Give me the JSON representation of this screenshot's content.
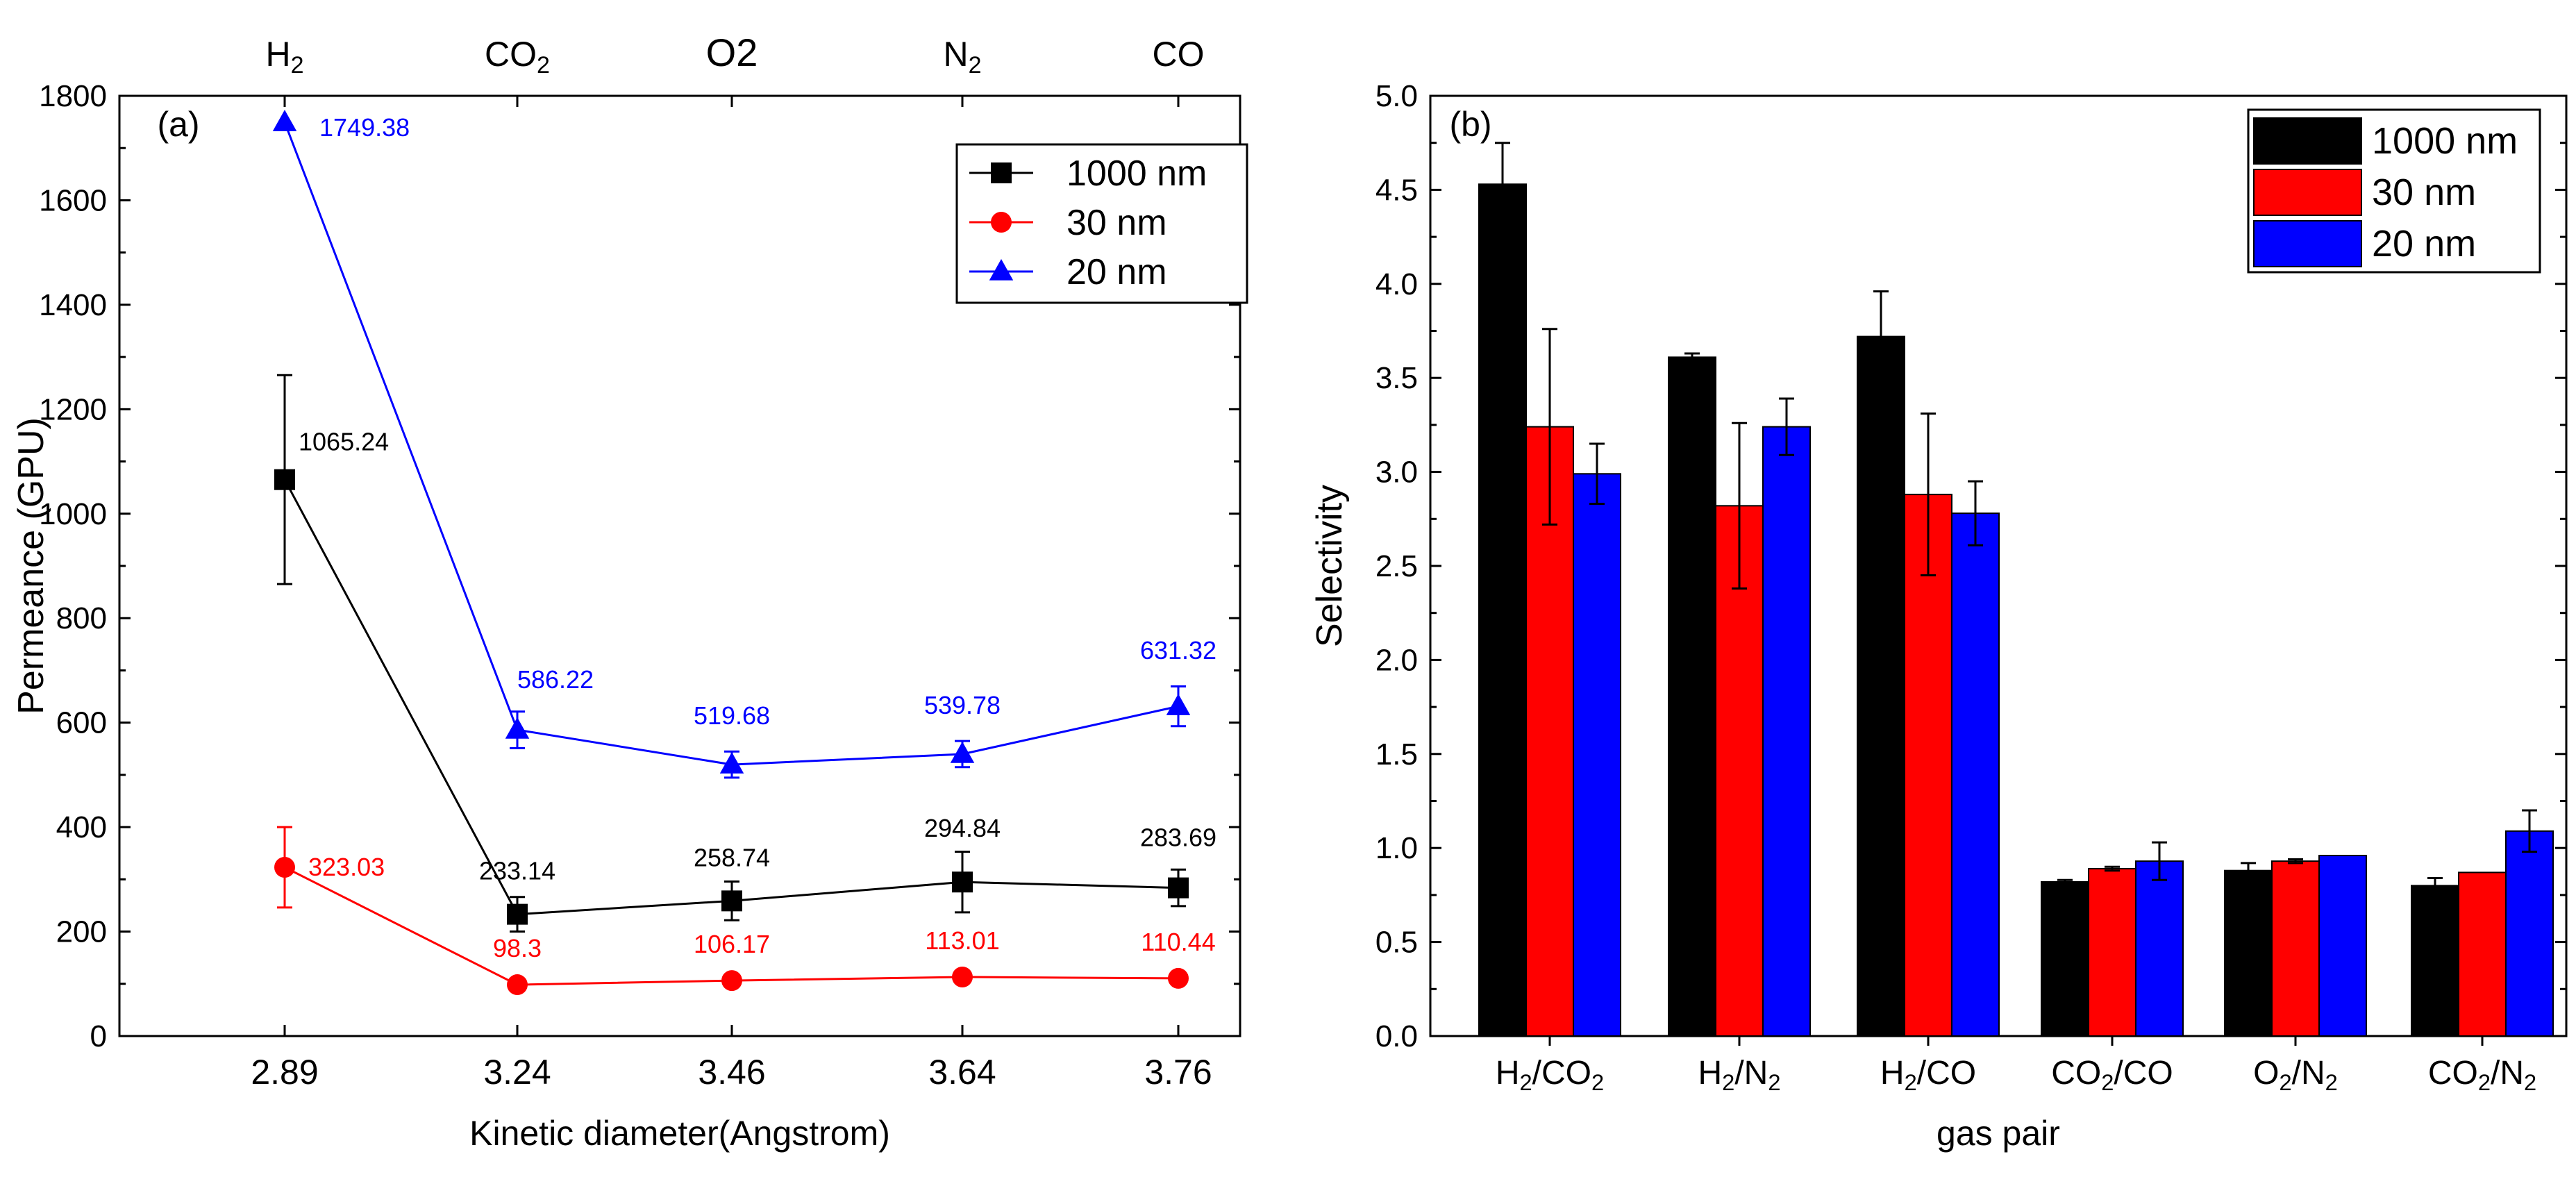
{
  "chart_data": [
    {
      "type": "line",
      "panel_label": "(a)",
      "xlabel": "Kinetic diameter(Angstrom)",
      "ylabel": "Permeance (GPU)",
      "ylim": [
        0,
        1800
      ],
      "yticks": [
        0,
        200,
        400,
        600,
        800,
        1000,
        1200,
        1400,
        1600,
        1800
      ],
      "categories": [
        "2.89",
        "3.24",
        "3.46",
        "3.64",
        "3.76"
      ],
      "top_labels": [
        {
          "base": "H",
          "sub": "2"
        },
        {
          "base": "CO",
          "sub": "2"
        },
        {
          "base": "O2",
          "sub": ""
        },
        {
          "base": "N",
          "sub": "2"
        },
        {
          "base": "CO",
          "sub": ""
        }
      ],
      "legend_position": "top-right",
      "series": [
        {
          "name": "1000 nm",
          "marker": "square",
          "color": "#000000",
          "values": [
            1065.24,
            233.14,
            258.74,
            294.84,
            283.69
          ],
          "errors": [
            200,
            33,
            37,
            58,
            35
          ],
          "labels": [
            "1065.24",
            "233.14",
            "258.74",
            "294.84",
            "283.69"
          ]
        },
        {
          "name": "30 nm",
          "marker": "circle",
          "color": "#ff0000",
          "values": [
            323.03,
            98.3,
            106.17,
            113.01,
            110.44
          ],
          "errors": [
            77,
            5,
            5,
            5,
            5
          ],
          "labels": [
            "323.03",
            "98.3",
            "106.17",
            "113.01",
            "110.44"
          ]
        },
        {
          "name": "20 nm",
          "marker": "triangle",
          "color": "#0000ff",
          "values": [
            1749.38,
            586.22,
            519.68,
            539.78,
            631.32
          ],
          "errors": [
            0,
            35,
            25,
            25,
            38
          ],
          "labels": [
            "1749.38",
            "586.22",
            "519.68",
            "539.78",
            "631.32"
          ]
        }
      ]
    },
    {
      "type": "bar",
      "panel_label": "(b)",
      "xlabel": "gas pair",
      "ylabel": "Selectivity",
      "ylim": [
        0,
        5.0
      ],
      "yticks": [
        "0.0",
        "0.5",
        "1.0",
        "1.5",
        "2.0",
        "2.5",
        "3.0",
        "3.5",
        "4.0",
        "4.5",
        "5.0"
      ],
      "categories": [
        {
          "a": "H",
          "as": "2",
          "b": "CO",
          "bs": "2"
        },
        {
          "a": "H",
          "as": "2",
          "b": "N",
          "bs": "2"
        },
        {
          "a": "H",
          "as": "2",
          "b": "CO",
          "bs": ""
        },
        {
          "a": "CO",
          "as": "2",
          "b": "CO",
          "bs": ""
        },
        {
          "a": "O",
          "as": "2",
          "b": "N",
          "bs": "2"
        },
        {
          "a": "CO",
          "as": "2",
          "b": "N",
          "bs": "2"
        }
      ],
      "legend_position": "top-right",
      "series": [
        {
          "name": "1000 nm",
          "color": "#000000",
          "values": [
            4.53,
            3.61,
            3.72,
            0.82,
            0.88,
            0.8
          ],
          "errors": [
            0.22,
            0.02,
            0.24,
            0.01,
            0.04,
            0.04
          ]
        },
        {
          "name": "30 nm",
          "color": "#ff0000",
          "values": [
            3.24,
            2.82,
            2.88,
            0.89,
            0.93,
            0.87
          ],
          "errors": [
            0.52,
            0.44,
            0.43,
            0.01,
            0.01,
            0.0
          ]
        },
        {
          "name": "20 nm",
          "color": "#0000ff",
          "values": [
            2.99,
            3.24,
            2.78,
            0.93,
            0.96,
            1.09
          ],
          "errors": [
            0.16,
            0.15,
            0.17,
            0.1,
            0.0,
            0.11
          ]
        }
      ]
    }
  ]
}
